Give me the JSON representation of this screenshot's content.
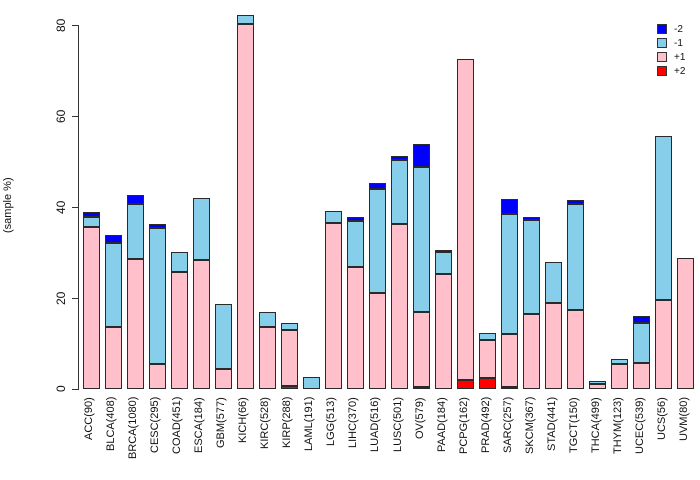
{
  "figure": {
    "ylabel": "(sample %)"
  },
  "legend": {
    "position": "top-right",
    "items": [
      {
        "label": "-2",
        "color": "#0000FF"
      },
      {
        "label": "-1",
        "color": "#87CEEB"
      },
      {
        "label": "+1",
        "color": "#FFC0CB"
      },
      {
        "label": "+2",
        "color": "#FF0000"
      }
    ]
  },
  "chart_data": {
    "type": "bar",
    "stacked": true,
    "title": "",
    "xlabel": "",
    "ylabel": "(sample %)",
    "ylim": [
      0,
      80
    ],
    "yticks": [
      0,
      20,
      40,
      60,
      80
    ],
    "grid": false,
    "legend_position": "top-right",
    "stack_order_bottom_to_top": [
      "+2",
      "+1",
      "-1",
      "-2"
    ],
    "categories": [
      "ACC(90)",
      "BLCA(408)",
      "BRCA(1080)",
      "CESC(295)",
      "COAD(451)",
      "ESCA(184)",
      "GBM(577)",
      "KICH(66)",
      "KIRC(528)",
      "KIRP(288)",
      "LAML(191)",
      "LGG(513)",
      "LIHC(370)",
      "LUAD(516)",
      "LUSC(501)",
      "OV(579)",
      "PAAD(184)",
      "PCPG(162)",
      "PRAD(492)",
      "SARC(257)",
      "SKCM(367)",
      "STAD(441)",
      "TGCT(150)",
      "THCA(499)",
      "THYM(123)",
      "UCEC(539)",
      "UCS(56)",
      "UVM(80)"
    ],
    "series": [
      {
        "name": "+2",
        "color": "#FF0000",
        "values": [
          0,
          0,
          0,
          0,
          0,
          0,
          0,
          0,
          0,
          0.7,
          0,
          0,
          0,
          0,
          0,
          0.5,
          0,
          1.9,
          2.4,
          0.4,
          0,
          0,
          0,
          0,
          0,
          0,
          0,
          0
        ]
      },
      {
        "name": "+1",
        "color": "#FFC0CB",
        "values": [
          35.5,
          13.7,
          28.5,
          5.6,
          25.8,
          28.3,
          4.4,
          80.3,
          13.6,
          12.2,
          0,
          36.4,
          26.9,
          21.1,
          36.3,
          16.4,
          25.2,
          70.7,
          8.4,
          11.6,
          16.4,
          18.9,
          17.4,
          1.0,
          5.5,
          5.7,
          19.6,
          28.8
        ]
      },
      {
        "name": "-1",
        "color": "#87CEEB",
        "values": [
          2.2,
          18.4,
          12.2,
          29.7,
          4.3,
          13.6,
          14.2,
          1.8,
          3.3,
          1.6,
          2.6,
          2.8,
          10.1,
          22.9,
          14.1,
          32.0,
          4.9,
          0,
          1.5,
          26.5,
          20.8,
          9.0,
          23.2,
          0.8,
          1.1,
          8.8,
          35.9,
          0
        ]
      },
      {
        "name": "-2",
        "color": "#0000FF",
        "values": [
          1.1,
          1.7,
          1.9,
          0.9,
          0,
          0,
          0,
          0,
          0,
          0,
          0,
          0,
          0.7,
          1.2,
          0.9,
          5.0,
          0.5,
          0,
          0,
          3.3,
          0.7,
          0,
          0.9,
          0,
          0,
          1.5,
          0,
          0
        ]
      }
    ]
  }
}
